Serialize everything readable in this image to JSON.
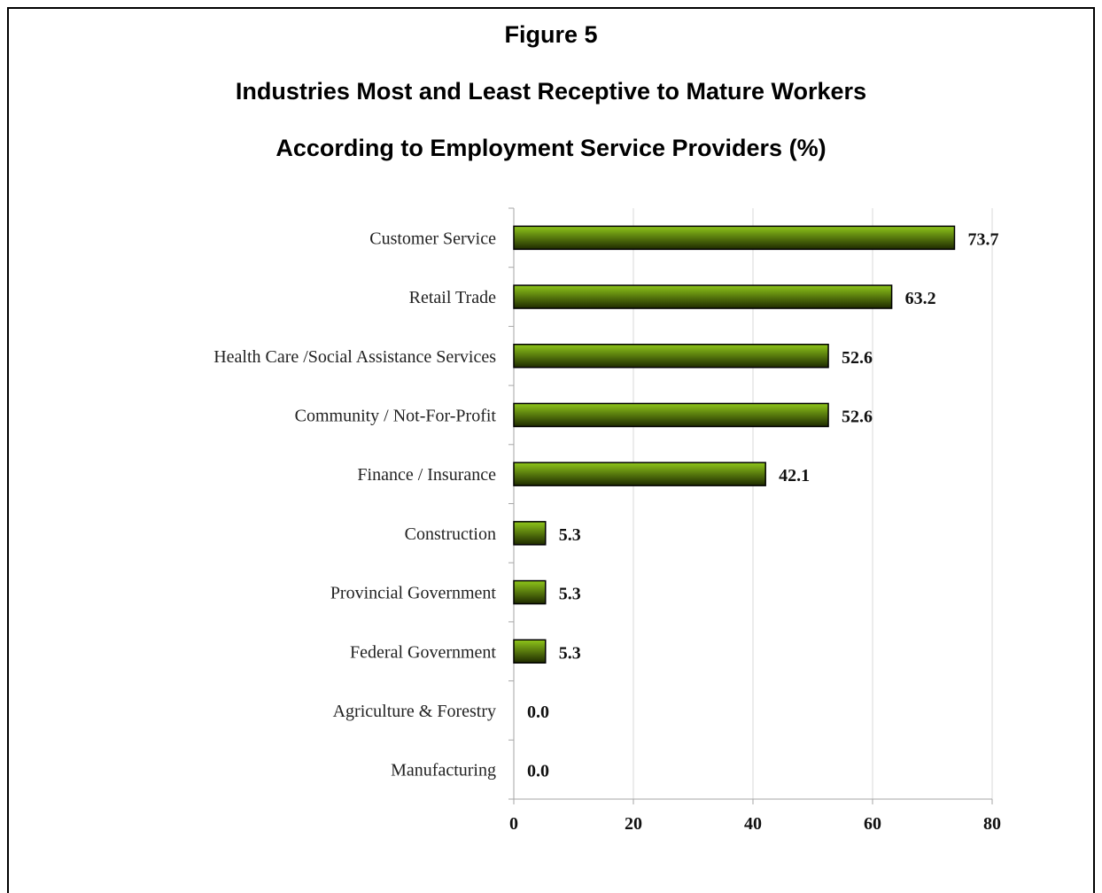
{
  "figure_label": "Figure 5",
  "title_line1": "Industries Most and Least Receptive to Mature Workers",
  "title_line2": "According to Employment Service Providers (%)",
  "colors": {
    "bar_light": "#8fc61a",
    "bar_dark": "#1e2a00",
    "grid": "#d9d9d9",
    "axis": "#a6a6a6"
  },
  "chart_data": {
    "type": "bar",
    "orientation": "horizontal",
    "categories": [
      "Customer Service",
      "Retail Trade",
      "Health Care /Social Assistance Services",
      "Community / Not-For-Profit",
      "Finance / Insurance",
      "Construction",
      "Provincial Government",
      "Federal Government",
      "Agriculture & Forestry",
      "Manufacturing"
    ],
    "values": [
      73.7,
      63.2,
      52.6,
      52.6,
      42.1,
      5.3,
      5.3,
      5.3,
      0.0,
      0.0
    ],
    "value_labels": [
      "73.7",
      "63.2",
      "52.6",
      "52.6",
      "42.1",
      "5.3",
      "5.3",
      "5.3",
      "0.0",
      "0.0"
    ],
    "xlim": [
      0,
      80
    ],
    "xticks": [
      0,
      20,
      40,
      60,
      80
    ],
    "xtick_labels": [
      "0",
      "20",
      "40",
      "60",
      "80"
    ],
    "grid": true,
    "legend": "none"
  }
}
